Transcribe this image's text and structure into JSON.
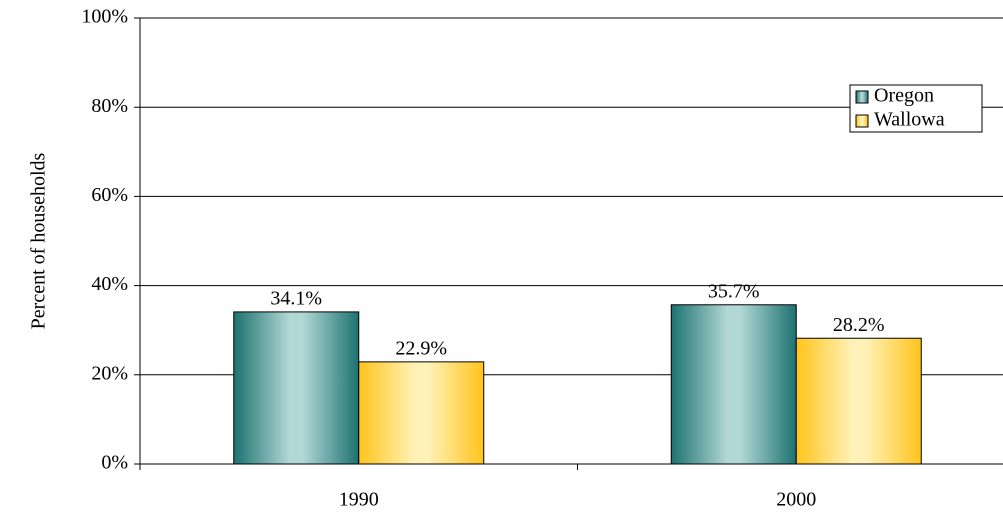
{
  "chart_data": {
    "type": "bar",
    "y_axis_label": "Percent of households",
    "categories": [
      "1990",
      "2000"
    ],
    "series": [
      {
        "name": "Oregon",
        "color": "#2a8280",
        "values": [
          34.1,
          35.7
        ],
        "value_labels": [
          "34.1%",
          "35.7%"
        ]
      },
      {
        "name": "Wallowa",
        "color": "#ffc928",
        "values": [
          22.9,
          28.2
        ],
        "value_labels": [
          "22.9%",
          "28.2%"
        ]
      }
    ],
    "ylim": [
      0,
      100
    ],
    "yticks": [
      {
        "value": 0,
        "label": "0%"
      },
      {
        "value": 20,
        "label": "20%"
      },
      {
        "value": 40,
        "label": "40%"
      },
      {
        "value": 60,
        "label": "60%"
      },
      {
        "value": 80,
        "label": "80%"
      },
      {
        "value": 100,
        "label": "100%"
      }
    ],
    "grid": true,
    "legend": "upper right"
  }
}
